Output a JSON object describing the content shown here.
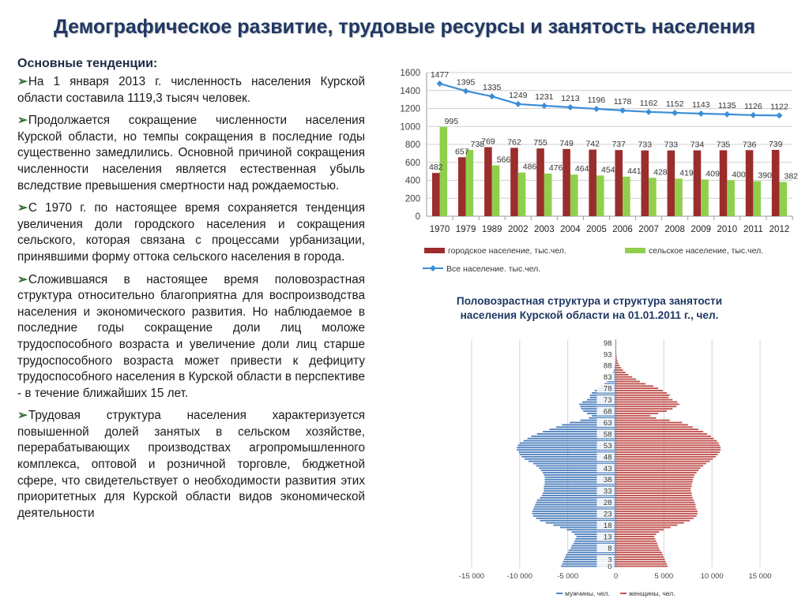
{
  "title": "Демографическое развитие, трудовые ресурсы и занятость населения",
  "left": {
    "heading": "Основные тенденции:",
    "bullet_icon": "arrow-bullet-icon",
    "bullets": [
      "На 1 января 2013 г. численность населения Курской области составила 1119,3 тысяч человек.",
      "Продолжается сокращение численности населения Курской области, но темпы сокращения в последние годы существенно замедлились. Основной причиной сокращения численности населения является естественная убыль вследствие превышения смертности над рождаемостью.",
      "С 1970 г. по настоящее время сохраняется тенденция увеличения доли городского населения и сокращения сельского, которая связана с процессами урбанизации, принявшими форму оттока сельского населения в города.",
      "Сложившаяся в настоящее время половозрастная структура относительно благоприятна для воспроизводства населения и экономического развития. Но наблюдаемое в последние годы сокращение доли лиц моложе трудоспособного возраста и увеличение доли лиц старше трудоспособного возраста может привести к дефициту трудоспособного населения в Курской области в перспективе - в течение ближайших 15 лет.",
      "Трудовая структура населения характеризуется повышенной долей занятых в сельском хозяйстве, перерабатывающих производствах агропромышленного комплекса, оптовой и розничной торговле, бюджетной сфере, что свидетельствует о необходимости развития этих приоритетных для Курской области видов экономической деятельности"
    ]
  },
  "chart_data": [
    {
      "type": "bar",
      "categories": [
        "1970",
        "1979",
        "1989",
        "2002",
        "2003",
        "2004",
        "2005",
        "2006",
        "2007",
        "2008",
        "2009",
        "2010",
        "2011",
        "2012"
      ],
      "series": [
        {
          "name": "городское население, тыс.чел.",
          "kind": "bar",
          "color": "#9b2d2d",
          "values": [
            482,
            657,
            769,
            762,
            755,
            749,
            742,
            737,
            733,
            733,
            734,
            735,
            736,
            739
          ]
        },
        {
          "name": "сельское население, тыс.чел.",
          "kind": "bar",
          "color": "#8fcf4c",
          "values": [
            995,
            738,
            566,
            486,
            476,
            464,
            454,
            441,
            428,
            419,
            409,
            400,
            390,
            382
          ]
        },
        {
          "name": "Все население. тыс.чел.",
          "kind": "line",
          "color": "#3b8ed6",
          "values": [
            1477,
            1395,
            1335,
            1249,
            1231,
            1213,
            1196,
            1178,
            1162,
            1152,
            1143,
            1135,
            1126,
            1122
          ]
        }
      ],
      "ylim": [
        0,
        1600
      ],
      "yticks": [
        0,
        200,
        400,
        600,
        800,
        1000,
        1200,
        1400,
        1600
      ],
      "grid": true,
      "legend_position": "bottom"
    },
    {
      "type": "bar",
      "subtype": "population-pyramid",
      "title": "Половозрастная структура и структура занятости населения Курской области на 01.01.2011 г., чел.",
      "age_labels": [
        "98",
        "93",
        "88",
        "83",
        "78",
        "73",
        "68",
        "63",
        "58",
        "53",
        "48",
        "43",
        "38",
        "33",
        "28",
        "23",
        "18",
        "13",
        "8",
        "3",
        "0"
      ],
      "ages": [
        0,
        1,
        2,
        3,
        4,
        5,
        6,
        7,
        8,
        9,
        10,
        11,
        12,
        13,
        14,
        15,
        16,
        17,
        18,
        19,
        20,
        21,
        22,
        23,
        24,
        25,
        26,
        27,
        28,
        29,
        30,
        31,
        32,
        33,
        34,
        35,
        36,
        37,
        38,
        39,
        40,
        41,
        42,
        43,
        44,
        45,
        46,
        47,
        48,
        49,
        50,
        51,
        52,
        53,
        54,
        55,
        56,
        57,
        58,
        59,
        60,
        61,
        62,
        63,
        64,
        65,
        66,
        67,
        68,
        69,
        70,
        71,
        72,
        73,
        74,
        75,
        76,
        77,
        78,
        79,
        80,
        81,
        82,
        83,
        84,
        85,
        86,
        87,
        88,
        89,
        90,
        91,
        92,
        93,
        94,
        95,
        96,
        97,
        98,
        99
      ],
      "series": [
        {
          "name": "мужчины, чел.",
          "color": "#4f81bd",
          "values": [
            -5700,
            -5600,
            -5500,
            -5400,
            -5300,
            -5200,
            -5000,
            -4900,
            -4700,
            -4600,
            -4400,
            -4300,
            -4200,
            -4100,
            -4300,
            -4600,
            -5100,
            -5800,
            -6500,
            -7300,
            -7900,
            -8300,
            -8600,
            -8700,
            -8700,
            -8600,
            -8500,
            -8400,
            -8300,
            -8200,
            -7900,
            -7700,
            -7600,
            -7500,
            -7500,
            -7500,
            -7400,
            -7400,
            -7400,
            -7400,
            -7500,
            -7600,
            -7800,
            -8000,
            -8300,
            -8600,
            -9100,
            -9500,
            -9800,
            -10000,
            -10100,
            -10300,
            -10300,
            -10200,
            -10000,
            -9600,
            -9200,
            -8800,
            -8200,
            -7600,
            -6900,
            -6200,
            -5600,
            -4800,
            -3700,
            -2800,
            -2500,
            -3000,
            -3400,
            -3600,
            -3700,
            -3800,
            -3500,
            -3000,
            -2700,
            -2700,
            -2500,
            -2200,
            -1900,
            -1600,
            -1200,
            -900,
            -700,
            -550,
            -400,
            -300,
            -220,
            -160,
            -110,
            -80,
            -55,
            -40,
            -28,
            -20,
            -14,
            -10,
            -7,
            -5,
            -3,
            -2
          ]
        },
        {
          "name": "женщины, чел.",
          "color": "#c0504d",
          "values": [
            5400,
            5300,
            5200,
            5100,
            5000,
            4900,
            4800,
            4600,
            4500,
            4400,
            4300,
            4200,
            4100,
            4000,
            4200,
            4500,
            5000,
            5700,
            6400,
            7100,
            7700,
            8100,
            8400,
            8500,
            8500,
            8400,
            8300,
            8300,
            8200,
            8100,
            8000,
            7900,
            7900,
            7800,
            7800,
            7900,
            7900,
            8000,
            8000,
            8100,
            8200,
            8400,
            8600,
            8800,
            9100,
            9400,
            9800,
            10100,
            10400,
            10600,
            10800,
            10900,
            10900,
            10800,
            10700,
            10500,
            10200,
            9900,
            9500,
            9100,
            8600,
            8000,
            7500,
            6900,
            5600,
            4200,
            3600,
            4400,
            5300,
            5900,
            6300,
            6600,
            6400,
            5900,
            5500,
            5600,
            5300,
            4900,
            4400,
            3900,
            3100,
            2500,
            2100,
            1700,
            1300,
            1000,
            750,
            550,
            380,
            260,
            180,
            120,
            80,
            55,
            35,
            22,
            14,
            9,
            5,
            3
          ]
        }
      ],
      "xlim": [
        -15000,
        15000
      ],
      "xticks": [
        -15000,
        -10000,
        -5000,
        0,
        5000,
        10000,
        15000
      ],
      "xtick_labels": [
        "-15 000",
        "-10 000",
        "-5 000",
        "0",
        "5 000",
        "10 000",
        "15 000"
      ],
      "grid": true,
      "legend_position": "bottom"
    }
  ]
}
